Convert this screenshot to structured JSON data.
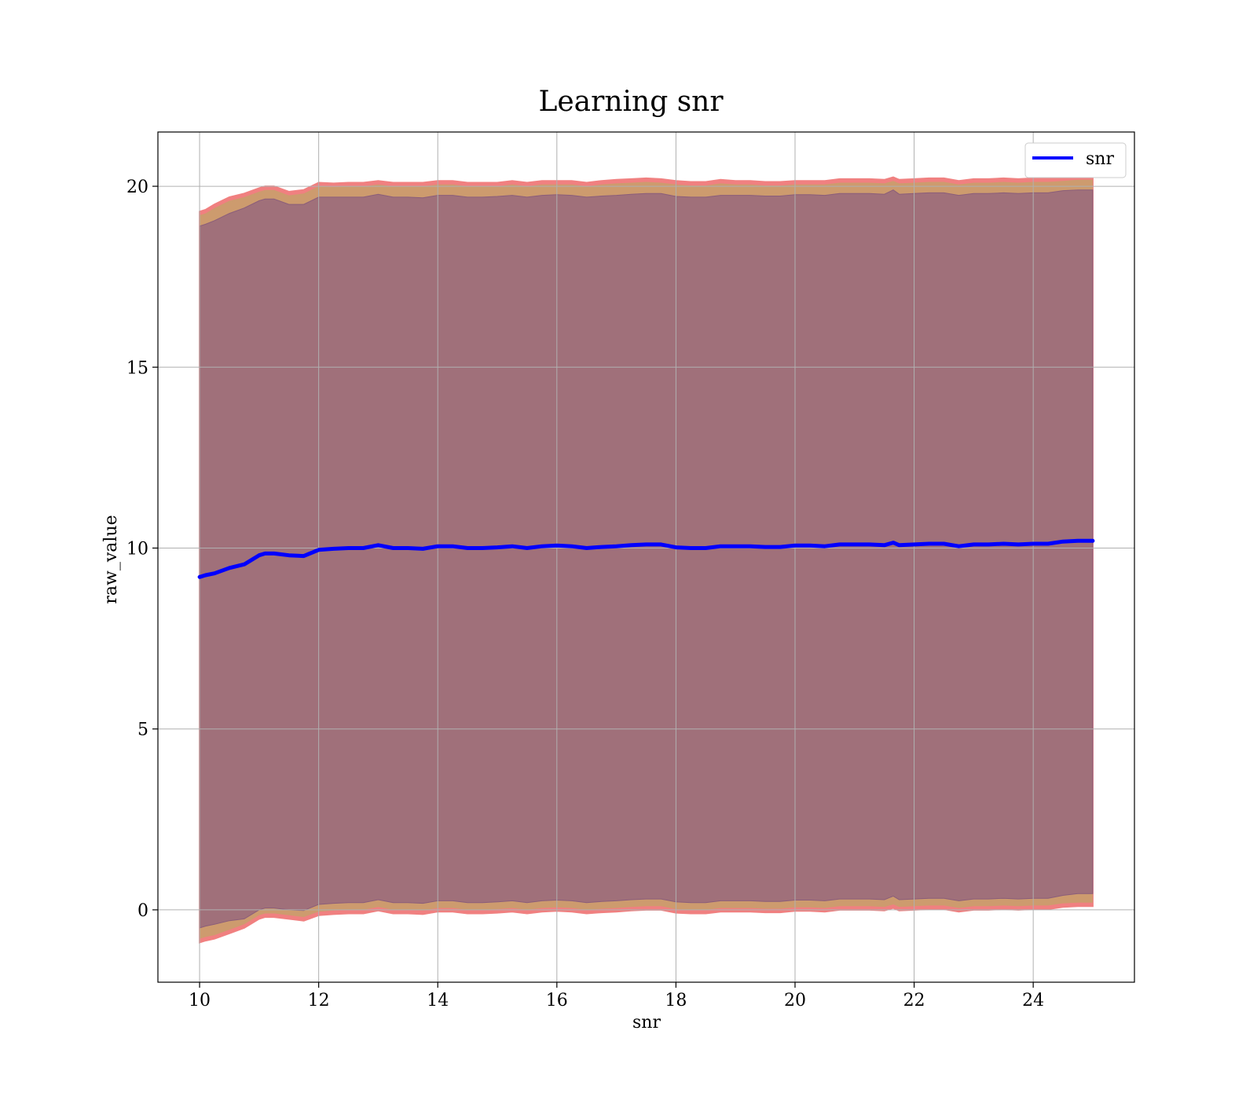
{
  "chart_data": {
    "type": "line",
    "title": "Learning snr",
    "xlabel": "snr",
    "ylabel": "raw_value",
    "xlim": [
      9.3,
      25.7
    ],
    "ylim": [
      -2.0,
      21.5
    ],
    "xticks": [
      10,
      12,
      14,
      16,
      18,
      20,
      22,
      24
    ],
    "yticks": [
      0,
      5,
      10,
      15,
      20
    ],
    "grid": true,
    "legend": {
      "position": "top-right",
      "entries": [
        "snr"
      ]
    },
    "colors": {
      "line": "#0000ff",
      "band_outer": "#f08080",
      "band_mid": "#cd9b6e",
      "band_inner": "#a0707a",
      "grid": "#b0b0b0"
    },
    "series": [
      {
        "name": "snr",
        "x": [
          10.0,
          10.1,
          10.25,
          10.5,
          10.75,
          11.0,
          11.1,
          11.25,
          11.5,
          11.75,
          12.0,
          12.25,
          12.5,
          12.75,
          13.0,
          13.25,
          13.5,
          13.75,
          14.0,
          14.25,
          14.5,
          14.75,
          15.0,
          15.25,
          15.5,
          15.75,
          16.0,
          16.25,
          16.5,
          16.75,
          17.0,
          17.25,
          17.5,
          17.75,
          18.0,
          18.25,
          18.5,
          18.75,
          19.0,
          19.25,
          19.5,
          19.75,
          20.0,
          20.25,
          20.5,
          20.75,
          21.0,
          21.25,
          21.5,
          21.65,
          21.75,
          22.0,
          22.25,
          22.5,
          22.75,
          23.0,
          23.25,
          23.5,
          23.75,
          24.0,
          24.25,
          24.5,
          24.75,
          25.0
        ],
        "y": [
          9.2,
          9.25,
          9.3,
          9.45,
          9.55,
          9.8,
          9.85,
          9.85,
          9.8,
          9.78,
          9.95,
          9.98,
          10.0,
          10.0,
          10.08,
          10.0,
          10.0,
          9.98,
          10.05,
          10.05,
          10.0,
          10.0,
          10.02,
          10.05,
          10.0,
          10.05,
          10.07,
          10.05,
          10.0,
          10.03,
          10.05,
          10.08,
          10.1,
          10.1,
          10.02,
          10.0,
          10.0,
          10.05,
          10.05,
          10.05,
          10.03,
          10.03,
          10.07,
          10.07,
          10.05,
          10.1,
          10.1,
          10.1,
          10.08,
          10.15,
          10.08,
          10.1,
          10.12,
          10.12,
          10.05,
          10.1,
          10.1,
          10.12,
          10.1,
          10.12,
          10.12,
          10.18,
          10.2,
          10.2
        ],
        "band_outer_upper": [
          19.3,
          19.35,
          19.5,
          19.7,
          19.8,
          19.95,
          20.0,
          20.0,
          19.85,
          19.9,
          20.1,
          20.08,
          20.1,
          20.1,
          20.15,
          20.1,
          20.1,
          20.1,
          20.15,
          20.15,
          20.1,
          20.1,
          20.1,
          20.15,
          20.1,
          20.15,
          20.15,
          20.15,
          20.1,
          20.15,
          20.18,
          20.2,
          20.22,
          20.2,
          20.15,
          20.12,
          20.12,
          20.18,
          20.15,
          20.15,
          20.12,
          20.12,
          20.15,
          20.15,
          20.15,
          20.2,
          20.2,
          20.2,
          20.18,
          20.25,
          20.18,
          20.2,
          20.22,
          20.22,
          20.15,
          20.2,
          20.2,
          20.22,
          20.2,
          20.22,
          20.22,
          20.25,
          20.28,
          20.28
        ],
        "band_outer_lower": [
          -0.9,
          -0.85,
          -0.8,
          -0.65,
          -0.5,
          -0.25,
          -0.2,
          -0.2,
          -0.25,
          -0.3,
          -0.15,
          -0.12,
          -0.1,
          -0.1,
          -0.02,
          -0.1,
          -0.1,
          -0.12,
          -0.05,
          -0.05,
          -0.1,
          -0.1,
          -0.08,
          -0.05,
          -0.1,
          -0.05,
          -0.03,
          -0.05,
          -0.1,
          -0.07,
          -0.05,
          -0.02,
          0.0,
          0.0,
          -0.08,
          -0.1,
          -0.1,
          -0.05,
          -0.05,
          -0.05,
          -0.07,
          -0.07,
          -0.03,
          -0.03,
          -0.05,
          0.0,
          0.0,
          0.0,
          -0.02,
          0.05,
          -0.02,
          0.0,
          0.02,
          0.02,
          -0.05,
          0.0,
          0.0,
          0.02,
          0.0,
          0.02,
          0.02,
          0.08,
          0.1,
          0.1
        ],
        "band_inner_upper": [
          18.9,
          18.95,
          19.05,
          19.25,
          19.4,
          19.6,
          19.65,
          19.65,
          19.5,
          19.5,
          19.7,
          19.7,
          19.7,
          19.7,
          19.78,
          19.7,
          19.7,
          19.68,
          19.75,
          19.75,
          19.7,
          19.7,
          19.72,
          19.75,
          19.7,
          19.75,
          19.77,
          19.75,
          19.7,
          19.73,
          19.75,
          19.78,
          19.8,
          19.8,
          19.72,
          19.7,
          19.7,
          19.75,
          19.75,
          19.75,
          19.73,
          19.73,
          19.77,
          19.77,
          19.75,
          19.8,
          19.8,
          19.8,
          19.78,
          19.9,
          19.78,
          19.8,
          19.82,
          19.82,
          19.75,
          19.8,
          19.8,
          19.82,
          19.8,
          19.82,
          19.82,
          19.88,
          19.9,
          19.9
        ],
        "band_inner_lower": [
          -0.5,
          -0.45,
          -0.4,
          -0.3,
          -0.25,
          0.0,
          0.05,
          0.05,
          0.0,
          -0.02,
          0.15,
          0.18,
          0.2,
          0.2,
          0.28,
          0.2,
          0.2,
          0.18,
          0.25,
          0.25,
          0.2,
          0.2,
          0.22,
          0.25,
          0.2,
          0.25,
          0.27,
          0.25,
          0.2,
          0.23,
          0.25,
          0.28,
          0.3,
          0.3,
          0.22,
          0.2,
          0.2,
          0.25,
          0.25,
          0.25,
          0.23,
          0.23,
          0.27,
          0.27,
          0.25,
          0.3,
          0.3,
          0.3,
          0.28,
          0.38,
          0.28,
          0.3,
          0.32,
          0.32,
          0.25,
          0.3,
          0.3,
          0.32,
          0.3,
          0.32,
          0.32,
          0.4,
          0.45,
          0.45
        ]
      }
    ]
  }
}
